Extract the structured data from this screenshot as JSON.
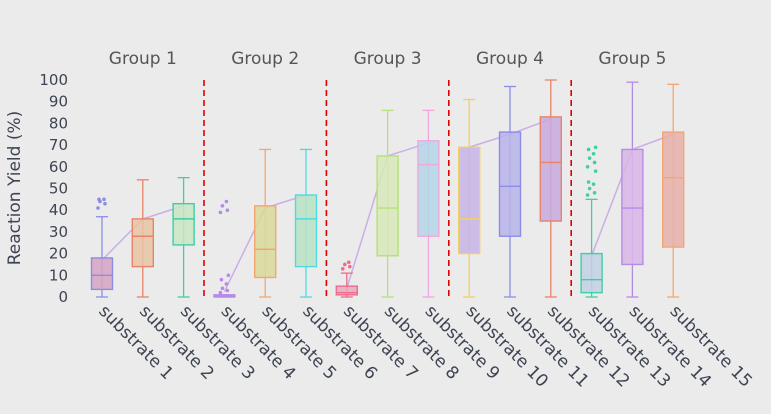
{
  "chart_data": {
    "type": "box",
    "ylabel": "Reaction Yield (%)",
    "ylim": [
      0,
      100
    ],
    "yticks": [
      0,
      10,
      20,
      30,
      40,
      50,
      60,
      70,
      80,
      90,
      100
    ],
    "group_labels": [
      "Group 1",
      "Group 2",
      "Group 3",
      "Group 4",
      "Group 5"
    ],
    "categories": [
      "substrate 1",
      "substrate 2",
      "substrate 3",
      "substrate 4",
      "substrate 5",
      "substrate 6",
      "substrate 7",
      "substrate 8",
      "substrate 9",
      "substrate 10",
      "substrate 11",
      "substrate 12",
      "substrate 13",
      "substrate 14",
      "substrate 15"
    ],
    "boxes": [
      {
        "group": 0,
        "color": "#8c8ce6",
        "fill": "#d6a3c2",
        "min": 0,
        "q1": 3.5,
        "median": 10,
        "q3": 18,
        "max": 37,
        "mean": 17,
        "outliers": [
          41,
          43,
          44,
          45,
          45
        ]
      },
      {
        "group": 0,
        "color": "#e8836b",
        "fill": "#e8c4a3",
        "min": 0,
        "q1": 14,
        "median": 28,
        "q3": 36,
        "max": 54,
        "mean": 36,
        "outliers": []
      },
      {
        "group": 0,
        "color": "#3ecfa4",
        "fill": "#c9e6c3",
        "min": 0,
        "q1": 24,
        "median": 36,
        "q3": 43,
        "max": 55,
        "mean": 42,
        "outliers": []
      },
      {
        "group": 1,
        "color": "#b58be8",
        "fill": "#c4a9ea",
        "min": 0,
        "q1": 0,
        "median": 0.5,
        "q3": 1,
        "max": 1,
        "mean": 2.5,
        "outliers": [
          2,
          3,
          4,
          6,
          8,
          10,
          39,
          40,
          42,
          44
        ]
      },
      {
        "group": 1,
        "color": "#f2a772",
        "fill": "#d9d99a",
        "min": 0,
        "q1": 9,
        "median": 22,
        "q3": 42,
        "max": 68,
        "mean": 41,
        "outliers": []
      },
      {
        "group": 1,
        "color": "#4fd9e0",
        "fill": "#b9e3c3",
        "min": 0,
        "q1": 14,
        "median": 36,
        "q3": 47,
        "max": 68,
        "mean": 47,
        "outliers": []
      },
      {
        "group": 2,
        "color": "#f06a8a",
        "fill": "#e8a9c0",
        "min": 0,
        "q1": 1,
        "median": 2,
        "q3": 5,
        "max": 11,
        "mean": 4,
        "outliers": [
          13,
          14,
          15,
          16
        ]
      },
      {
        "group": 2,
        "color": "#b6e07a",
        "fill": "#d7e9b8",
        "min": 0,
        "q1": 19,
        "median": 41,
        "q3": 65,
        "max": 86,
        "mean": 65,
        "outliers": []
      },
      {
        "group": 2,
        "color": "#f2a6e0",
        "fill": "#b4d6e8",
        "min": 0,
        "q1": 28,
        "median": 61,
        "q3": 72,
        "max": 86,
        "mean": 71,
        "outliers": []
      },
      {
        "group": 3,
        "color": "#f2cf63",
        "fill": "#c7b5e8",
        "min": 0,
        "q1": 20,
        "median": 36,
        "q3": 69,
        "max": 91,
        "mean": 69,
        "outliers": []
      },
      {
        "group": 3,
        "color": "#8c8ce6",
        "fill": "#b9b4ea",
        "min": 0,
        "q1": 28,
        "median": 51,
        "q3": 76,
        "max": 97,
        "mean": 75,
        "outliers": []
      },
      {
        "group": 3,
        "color": "#e8836b",
        "fill": "#c8a9dd",
        "min": 0,
        "q1": 35,
        "median": 62,
        "q3": 83,
        "max": 100,
        "mean": 82,
        "outliers": []
      },
      {
        "group": 4,
        "color": "#3ecfa4",
        "fill": "#c2d1e6",
        "min": 0,
        "q1": 2,
        "median": 8,
        "q3": 20,
        "max": 45,
        "mean": 19,
        "outliers": [
          47,
          48,
          50,
          52,
          53,
          58,
          60,
          62,
          64,
          66,
          68,
          69
        ]
      },
      {
        "group": 4,
        "color": "#b58be8",
        "fill": "#d9b5e8",
        "min": 0,
        "q1": 15,
        "median": 41,
        "q3": 68,
        "max": 99,
        "mean": 68,
        "outliers": []
      },
      {
        "group": 4,
        "color": "#f2a772",
        "fill": "#e8b0a9",
        "min": 0,
        "q1": 23,
        "median": 55,
        "q3": 76,
        "max": 98,
        "mean": 75,
        "outliers": []
      }
    ],
    "group_separator_color": "#e00000",
    "mean_line_color": "#c8a6e8",
    "grid": false,
    "legend": "none"
  }
}
